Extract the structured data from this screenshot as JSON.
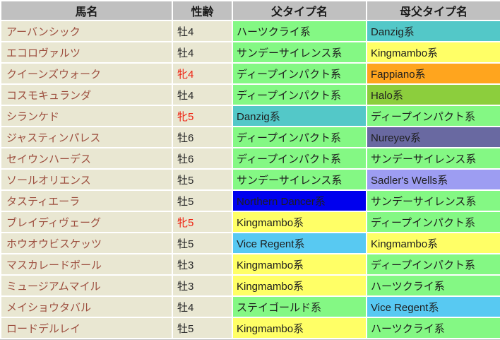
{
  "chart_data": {
    "type": "table",
    "columns": [
      "馬名",
      "性齢",
      "父タイプ名",
      "母父タイプ名"
    ],
    "rows": [
      {
        "name": "アーバンシック",
        "sex": "牡4",
        "sex_type": "male",
        "sire": "ハーツクライ系",
        "sire_color": "green",
        "damsire": "Danzig系",
        "damsire_color": "teal"
      },
      {
        "name": "エコロヴァルツ",
        "sex": "牡4",
        "sex_type": "male",
        "sire": "サンデーサイレンス系",
        "sire_color": "green",
        "damsire": "Kingmambo系",
        "damsire_color": "yellow"
      },
      {
        "name": "クイーンズウォーク",
        "sex": "牝4",
        "sex_type": "female",
        "sire": "ディープインパクト系",
        "sire_color": "green",
        "damsire": "Fappiano系",
        "damsire_color": "orange"
      },
      {
        "name": "コスモキュランダ",
        "sex": "牡4",
        "sex_type": "male",
        "sire": "ディープインパクト系",
        "sire_color": "green",
        "damsire": "Halo系",
        "damsire_color": "yellow_green"
      },
      {
        "name": "シランケド",
        "sex": "牝5",
        "sex_type": "female",
        "sire": "Danzig系",
        "sire_color": "teal",
        "damsire": "ディープインパクト系",
        "damsire_color": "green"
      },
      {
        "name": "ジャスティンパレス",
        "sex": "牡6",
        "sex_type": "male",
        "sire": "ディープインパクト系",
        "sire_color": "green",
        "damsire": "Nureyev系",
        "damsire_color": "slate_purple"
      },
      {
        "name": "セイウンハーデス",
        "sex": "牡6",
        "sex_type": "male",
        "sire": "ディープインパクト系",
        "sire_color": "green",
        "damsire": "サンデーサイレンス系",
        "damsire_color": "green"
      },
      {
        "name": "ソールオリエンス",
        "sex": "牡5",
        "sex_type": "male",
        "sire": "サンデーサイレンス系",
        "sire_color": "green",
        "damsire": "Sadler's Wells系",
        "damsire_color": "lavender"
      },
      {
        "name": "タスティエーラ",
        "sex": "牡5",
        "sex_type": "male",
        "sire": "Northern Dancer系",
        "sire_color": "blue",
        "damsire": "サンデーサイレンス系",
        "damsire_color": "green"
      },
      {
        "name": "ブレイディヴェーグ",
        "sex": "牝5",
        "sex_type": "female",
        "sire": "Kingmambo系",
        "sire_color": "yellow",
        "damsire": "ディープインパクト系",
        "damsire_color": "green"
      },
      {
        "name": "ホウオウビスケッツ",
        "sex": "牡5",
        "sex_type": "male",
        "sire": "Vice Regent系",
        "sire_color": "sky_blue",
        "damsire": "Kingmambo系",
        "damsire_color": "yellow"
      },
      {
        "name": "マスカレードボール",
        "sex": "牡3",
        "sex_type": "male",
        "sire": "Kingmambo系",
        "sire_color": "yellow",
        "damsire": "ディープインパクト系",
        "damsire_color": "green"
      },
      {
        "name": "ミュージアムマイル",
        "sex": "牡3",
        "sex_type": "male",
        "sire": "Kingmambo系",
        "sire_color": "yellow",
        "damsire": "ハーツクライ系",
        "damsire_color": "green"
      },
      {
        "name": "メイショウタバル",
        "sex": "牡4",
        "sex_type": "male",
        "sire": "ステイゴールド系",
        "sire_color": "green",
        "damsire": "Vice Regent系",
        "damsire_color": "sky_blue"
      },
      {
        "name": "ロードデルレイ",
        "sex": "牡5",
        "sex_type": "male",
        "sire": "Kingmambo系",
        "sire_color": "yellow",
        "damsire": "ハーツクライ系",
        "damsire_color": "green"
      }
    ]
  },
  "colors": {
    "header_bg": "#c0c0c0",
    "row_bg": "#e9e7d2",
    "name_text": "#9d4f3f",
    "male_text": "#2b2b2b",
    "female_text": "#ee2211",
    "green": "#84f884",
    "teal": "#53c8c8",
    "yellow": "#ffff66",
    "orange": "#ffa51e",
    "yellow_green": "#8cce3d",
    "slate_purple": "#6969a1",
    "lavender": "#9d9df2",
    "blue": "#0000ee",
    "sky_blue": "#58c9f2"
  }
}
